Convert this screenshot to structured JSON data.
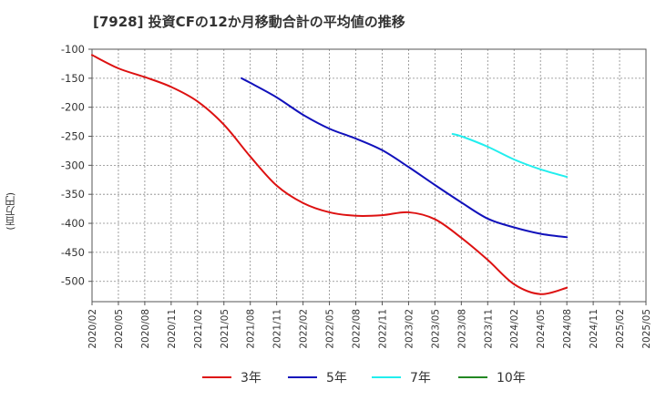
{
  "chart_data": {
    "type": "line",
    "title": "[7928]  投資CFの12か月移動合計の平均値の推移",
    "ylabel": "(百万円)",
    "xlabel": "",
    "ylim": [
      -535,
      -100
    ],
    "yticks": [
      -100,
      -150,
      -200,
      -250,
      -300,
      -350,
      -400,
      -450,
      -500
    ],
    "x_tick_labels": [
      "2020/02",
      "2020/05",
      "2020/08",
      "2020/11",
      "2021/02",
      "2021/05",
      "2021/08",
      "2021/11",
      "2022/02",
      "2022/05",
      "2022/08",
      "2022/11",
      "2023/02",
      "2023/05",
      "2023/08",
      "2023/11",
      "2024/02",
      "2024/05",
      "2024/08",
      "2024/11",
      "2025/02",
      "2025/05"
    ],
    "grid": true,
    "legend_position": "bottom",
    "series": [
      {
        "name": "3年",
        "color": "#dd1111",
        "x": [
          "2020/02",
          "2020/05",
          "2020/08",
          "2020/11",
          "2021/02",
          "2021/05",
          "2021/08",
          "2021/11",
          "2022/02",
          "2022/05",
          "2022/08",
          "2022/11",
          "2023/02",
          "2023/05",
          "2023/08",
          "2023/11",
          "2024/02",
          "2024/05",
          "2024/08"
        ],
        "values": [
          -110,
          -133,
          -148,
          -165,
          -190,
          -230,
          -285,
          -335,
          -365,
          -381,
          -387,
          -386,
          -381,
          -393,
          -425,
          -463,
          -505,
          -522,
          -511
        ]
      },
      {
        "name": "5年",
        "color": "#1111bb",
        "x": [
          "2021/07",
          "2021/08",
          "2021/11",
          "2022/02",
          "2022/05",
          "2022/08",
          "2022/11",
          "2023/02",
          "2023/05",
          "2023/08",
          "2023/11",
          "2024/02",
          "2024/05",
          "2024/08"
        ],
        "values": [
          -150,
          -158,
          -183,
          -213,
          -237,
          -254,
          -274,
          -303,
          -334,
          -364,
          -392,
          -407,
          -418,
          -424
        ]
      },
      {
        "name": "7年",
        "color": "#22eeee",
        "x": [
          "2023/07",
          "2023/08",
          "2023/11",
          "2024/02",
          "2024/05",
          "2024/08"
        ],
        "values": [
          -246,
          -250,
          -268,
          -290,
          -307,
          -320
        ]
      },
      {
        "name": "10年",
        "color": "#228822",
        "x": [],
        "values": []
      }
    ]
  }
}
